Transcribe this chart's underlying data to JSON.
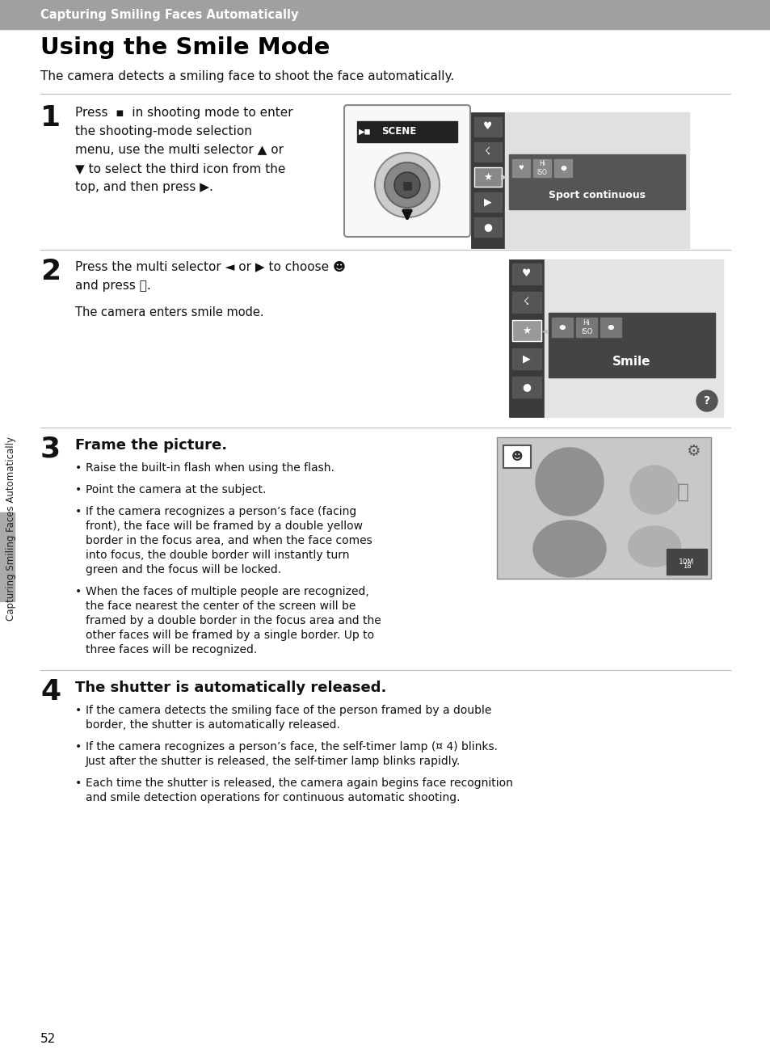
{
  "page_bg": "#f0f0f0",
  "content_bg": "#ffffff",
  "header_bg": "#999999",
  "header_text": "Capturing Smiling Faces Automatically",
  "header_text_color": "#ffffff",
  "title": "Using the Smile Mode",
  "title_color": "#000000",
  "intro_text": "The camera detects a smiling face to shoot the face automatically.",
  "step3_title": "Frame the picture.",
  "step3_bullets": [
    "Raise the built-in flash when using the flash.",
    "Point the camera at the subject.",
    "If the camera recognizes a person’s face (facing front), the face will be framed by a double yellow border in the focus area, and when the face comes into focus, the double border will instantly turn green and the focus will be locked.",
    "When the faces of multiple people are recognized, the face nearest the center of the screen will be framed by a double border in the focus area and the other faces will be framed by a single border. Up to three faces will be recognized."
  ],
  "step4_title": "The shutter is automatically released.",
  "step4_bullets": [
    "If the camera detects the smiling face of the person framed by a double border, the shutter is automatically released.",
    "If the camera recognizes a person’s face, the self-timer lamp (¤ 4) blinks. Just after the shutter is released, the self-timer lamp blinks rapidly.",
    "Each time the shutter is released, the camera again begins face recognition and smile detection operations for continuous automatic shooting."
  ],
  "sidebar_text": "Capturing Smiling Faces Automatically",
  "page_num": "52",
  "dark_gray": "#444444",
  "icon_strip_color": "#555555",
  "panel_light": "#e8e8e8",
  "tooltip_dark": "#555555",
  "smile_dark": "#333333"
}
